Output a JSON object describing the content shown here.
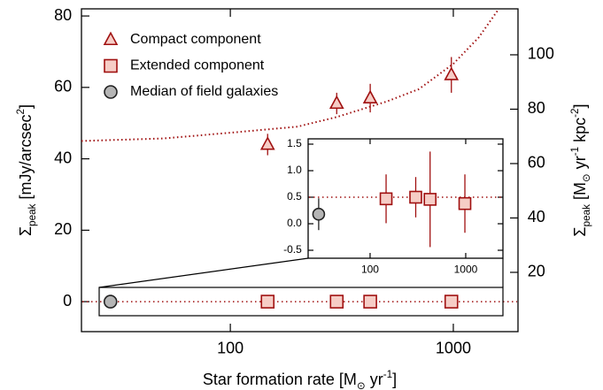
{
  "chart_data": [
    {
      "type": "scatter",
      "xlog": true,
      "xlim": [
        21.5,
        1950
      ],
      "xticks": [
        100,
        1000
      ],
      "ylim": [
        -8.4,
        82
      ],
      "yticks": [
        0,
        20,
        40,
        60,
        80
      ],
      "y2lim": [
        -1.8,
        116.9
      ],
      "y2ticks": [
        20,
        40,
        60,
        80,
        100
      ],
      "xlabel": [
        {
          "text": "Star formation rate [M"
        },
        {
          "text": "⊙",
          "sub": true
        },
        {
          "text": " yr"
        },
        {
          "text": "-1",
          "sup": true
        },
        {
          "text": "]"
        }
      ],
      "ylabel": [
        {
          "text": "Σ"
        },
        {
          "text": "peak",
          "sub": true
        },
        {
          "text": " [mJy/arcsec"
        },
        {
          "text": "2",
          "sup": true
        },
        {
          "text": "]"
        }
      ],
      "y2label": [
        {
          "text": "Σ"
        },
        {
          "text": "peak",
          "sub": true
        },
        {
          "text": " [M"
        },
        {
          "text": "⊙",
          "sub": true
        },
        {
          "text": " yr"
        },
        {
          "text": "-1",
          "sup": true
        },
        {
          "text": " kpc"
        },
        {
          "text": "-2",
          "sup": true
        },
        {
          "text": "]"
        }
      ],
      "legend": "upper left",
      "hline": 0,
      "hline_color": "#a01010",
      "series": [
        {
          "name": "Compact component",
          "marker": "triangle",
          "color": "#a01010",
          "fill": "#f6cdc6",
          "x": [
            147,
            300,
            424,
            980
          ],
          "values": [
            44,
            55.5,
            57,
            63.5
          ],
          "errors": [
            3,
            3,
            4,
            5
          ]
        },
        {
          "name": "Extended component",
          "marker": "square",
          "color": "#a01010",
          "fill": "#f6cdc6",
          "x": [
            147,
            300,
            424,
            980
          ],
          "values": [
            0,
            0,
            0,
            0
          ]
        },
        {
          "name": "Median of field galaxies",
          "marker": "circle",
          "color": "#222222",
          "fill": "#b5b5b5",
          "x": [
            29
          ],
          "values": [
            0
          ]
        },
        {
          "marker": "dotted-line",
          "color": "#a01010",
          "x": [
            21.5,
            50,
            100,
            200,
            300,
            500,
            700,
            1000,
            1300,
            1600
          ],
          "values": [
            45,
            45.7,
            47.3,
            49,
            51.7,
            56,
            59.5,
            66.6,
            74,
            82
          ]
        }
      ]
    },
    {
      "type": "scatter",
      "xlog": true,
      "xlim": [
        22.5,
        2450
      ],
      "xticks": [
        100,
        1000
      ],
      "ylim": [
        -0.65,
        1.6
      ],
      "yticks": [
        -0.5,
        {
          "value": 0,
          "label": "0.0"
        },
        0.5,
        {
          "value": 1,
          "label": "1.0"
        },
        1.5
      ],
      "hline": 0.5,
      "hline_color": "#a01010",
      "series": [
        {
          "marker": "square",
          "color": "#a01010",
          "fill": "#f6cdc6",
          "x": [
            147,
            300,
            424,
            980
          ],
          "values": [
            0.47,
            0.5,
            0.46,
            0.38
          ],
          "errors": [
            0.46,
            0.38,
            0.9,
            0.55
          ]
        },
        {
          "marker": "circle",
          "color": "#222222",
          "fill": "#b5b5b5",
          "x": [
            29
          ],
          "values": [
            0.18
          ],
          "errors": [
            0.3
          ]
        }
      ]
    }
  ]
}
